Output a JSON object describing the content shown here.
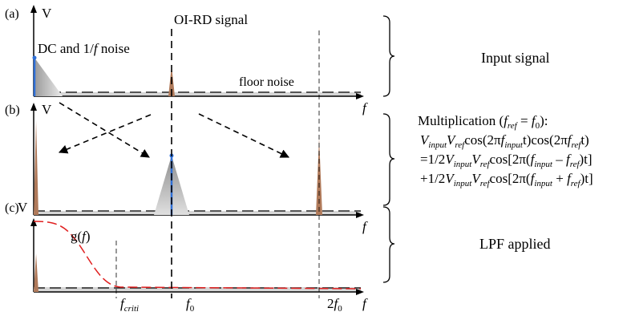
{
  "panels": {
    "a": {
      "label": "(a)",
      "axis_y": "V",
      "axis_x": "f"
    },
    "b": {
      "label": "(b)",
      "axis_y": "V",
      "axis_x": "f"
    },
    "c": {
      "label": "(c)",
      "axis_y": "V",
      "axis_x": "f"
    }
  },
  "annotations": {
    "signal_title": "OI-RD signal",
    "dc_noise_prefix": "DC and 1/",
    "dc_noise_f": "f",
    "dc_noise_suffix": " noise",
    "floor_noise": "floor noise",
    "g_prefix": "g(",
    "g_f": "f",
    "g_suffix": ")"
  },
  "right_labels": {
    "input_signal": "Input signal",
    "lpf_applied": "LPF applied"
  },
  "equations": {
    "line1_prefix": "Multiplication (",
    "line1_f": "f",
    "line1_ref": "ref",
    "line1_eq": " = ",
    "line1_f0": "f",
    "line1_0": "0",
    "line1_suffix": "):",
    "V": "V",
    "input": "input",
    "ref": "ref",
    "f": "f",
    "cos_open": "cos(2π",
    "t_close": "t)",
    "eq_half": "=1/2",
    "plus_half": "+1/2",
    "cos_bracket_open": "cos[2π(",
    "minus": " – ",
    "plus": " + ",
    "bracket_close": ")t]"
  },
  "x_ticks": {
    "fcriti_f": "f",
    "fcriti_sub": "criti",
    "f0_f": "f",
    "f0_sub": "0",
    "two_f0_prefix": "2",
    "two_f0_f": "f",
    "two_f0_sub": "0"
  },
  "colors": {
    "peak_fill": "#b07a5a",
    "noise_gray": "#9a9a9a",
    "dc_line": "#2f6fd6",
    "lpf_curve": "#e02020",
    "axis": "#000000"
  }
}
